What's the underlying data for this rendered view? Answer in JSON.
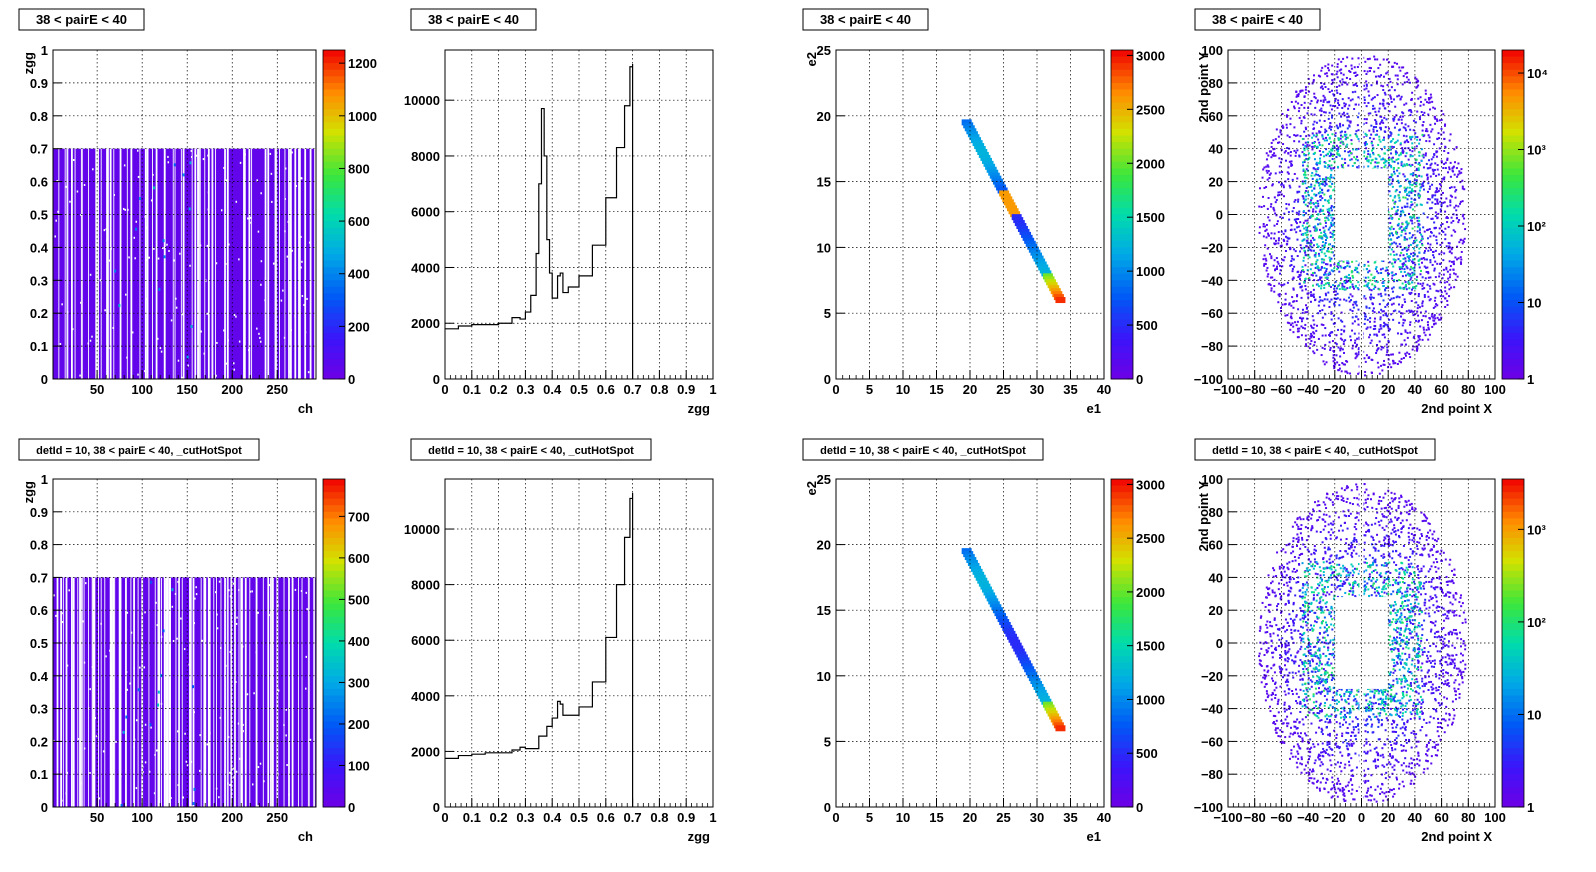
{
  "chart_data": [
    {
      "type": "heatmap",
      "title": "38 < pairE < 40",
      "xlabel": "ch",
      "ylabel": "zgg",
      "xlim": [
        1,
        293
      ],
      "ylim": [
        0,
        1
      ],
      "xticks": [
        50,
        100,
        150,
        200,
        250
      ],
      "xtick_labels": [
        "50",
        "100",
        "150",
        "200",
        "250"
      ],
      "yticks": [
        0,
        0.1,
        0.2,
        0.3,
        0.4,
        0.5,
        0.6,
        0.7,
        0.8,
        0.9,
        1
      ],
      "ytick_labels": [
        "0",
        "0.1",
        "0.2",
        "0.3",
        "0.4",
        "0.5",
        "0.6",
        "0.7",
        "0.8",
        "0.9",
        "1"
      ],
      "zlim": [
        0,
        1250
      ],
      "zticks": [
        0,
        200,
        400,
        600,
        800,
        1000,
        1200
      ],
      "ztick_labels": [
        "0",
        "200",
        "400",
        "600",
        "800",
        "1000",
        "1200"
      ],
      "fill": {
        "x_range": [
          1,
          293
        ],
        "y_range": [
          0,
          0.7
        ]
      }
    },
    {
      "type": "line",
      "title": "38 < pairE < 40",
      "xlabel": "zgg",
      "ylabel": "",
      "xlim": [
        0,
        1
      ],
      "ylim": [
        0,
        11800
      ],
      "xticks": [
        0,
        0.1,
        0.2,
        0.3,
        0.4,
        0.5,
        0.6,
        0.7,
        0.8,
        0.9,
        1
      ],
      "xtick_labels": [
        "0",
        "0.1",
        "0.2",
        "0.3",
        "0.4",
        "0.5",
        "0.6",
        "0.7",
        "0.8",
        "0.9",
        "1"
      ],
      "yticks": [
        0,
        2000,
        4000,
        6000,
        8000,
        10000
      ],
      "ytick_labels": [
        "0",
        "2000",
        "4000",
        "6000",
        "8000",
        "10000"
      ],
      "x": [
        0,
        0.05,
        0.1,
        0.15,
        0.2,
        0.25,
        0.28,
        0.3,
        0.32,
        0.34,
        0.35,
        0.36,
        0.37,
        0.38,
        0.39,
        0.4,
        0.42,
        0.43,
        0.44,
        0.46,
        0.5,
        0.55,
        0.6,
        0.64,
        0.67,
        0.69,
        0.7
      ],
      "y": [
        1800,
        1900,
        1950,
        1950,
        2000,
        2200,
        2150,
        2400,
        3000,
        4500,
        7000,
        9700,
        8000,
        5000,
        3800,
        2900,
        3700,
        3800,
        3100,
        3300,
        3700,
        4800,
        6500,
        8300,
        9800,
        11200,
        11300
      ]
    },
    {
      "type": "heatmap",
      "title": "38 < pairE < 40",
      "xlabel": "e1",
      "ylabel": "e2",
      "xlim": [
        0,
        40
      ],
      "ylim": [
        0,
        25
      ],
      "xticks": [
        0,
        5,
        10,
        15,
        20,
        25,
        30,
        35,
        40
      ],
      "xtick_labels": [
        "0",
        "5",
        "10",
        "15",
        "20",
        "25",
        "30",
        "35",
        "40"
      ],
      "yticks": [
        0,
        5,
        10,
        15,
        20,
        25
      ],
      "ytick_labels": [
        "0",
        "5",
        "10",
        "15",
        "20",
        "25"
      ],
      "zlim": [
        0,
        3050
      ],
      "zticks": [
        0,
        500,
        1000,
        1500,
        2000,
        2500,
        3000
      ],
      "ztick_labels": [
        "0",
        "500",
        "1000",
        "1500",
        "2000",
        "2500",
        "3000"
      ],
      "band": {
        "from": [
          19.5,
          19.5
        ],
        "to": [
          33.5,
          6.0
        ],
        "hot_at": [
          26,
          12.5
        ]
      }
    },
    {
      "type": "heatmap",
      "title": "38 < pairE < 40",
      "xlabel": "2nd point X",
      "ylabel": "2nd point Y",
      "xlim": [
        -100,
        100
      ],
      "ylim": [
        -100,
        100
      ],
      "zscale": "log",
      "xticks": [
        -100,
        -80,
        -60,
        -40,
        -20,
        0,
        20,
        40,
        60,
        80,
        100
      ],
      "xtick_labels": [
        "−100",
        "−80",
        "−60",
        "−40",
        "−20",
        "0",
        "20",
        "40",
        "60",
        "80",
        "100"
      ],
      "yticks": [
        -100,
        -80,
        -60,
        -40,
        -20,
        0,
        20,
        40,
        60,
        80,
        100
      ],
      "ytick_labels": [
        "−100",
        "−80",
        "−60",
        "−40",
        "−20",
        "0",
        "20",
        "40",
        "60",
        "80",
        "100"
      ],
      "zlim": [
        1,
        20000
      ],
      "zticks": [
        1,
        10,
        100,
        1000,
        10000
      ],
      "ztick_labels": [
        "1",
        "10",
        "10²",
        "10³",
        "10⁴"
      ]
    },
    {
      "type": "heatmap",
      "title": "detId = 10, 38 < pairE < 40, _cutHotSpot",
      "xlabel": "ch",
      "ylabel": "zgg",
      "xlim": [
        1,
        293
      ],
      "ylim": [
        0,
        1
      ],
      "xticks": [
        50,
        100,
        150,
        200,
        250
      ],
      "xtick_labels": [
        "50",
        "100",
        "150",
        "200",
        "250"
      ],
      "yticks": [
        0,
        0.1,
        0.2,
        0.3,
        0.4,
        0.5,
        0.6,
        0.7,
        0.8,
        0.9,
        1
      ],
      "ytick_labels": [
        "0",
        "0.1",
        "0.2",
        "0.3",
        "0.4",
        "0.5",
        "0.6",
        "0.7",
        "0.8",
        "0.9",
        "1"
      ],
      "zlim": [
        0,
        790
      ],
      "zticks": [
        0,
        100,
        200,
        300,
        400,
        500,
        600,
        700
      ],
      "ztick_labels": [
        "0",
        "100",
        "200",
        "300",
        "400",
        "500",
        "600",
        "700"
      ],
      "fill": {
        "x_range": [
          1,
          293
        ],
        "y_range": [
          0,
          0.7
        ]
      }
    },
    {
      "type": "line",
      "title": "detId = 10, 38 < pairE < 40, _cutHotSpot",
      "xlabel": "zgg",
      "ylabel": "",
      "xlim": [
        0,
        1
      ],
      "ylim": [
        0,
        11800
      ],
      "xticks": [
        0,
        0.1,
        0.2,
        0.3,
        0.4,
        0.5,
        0.6,
        0.7,
        0.8,
        0.9,
        1
      ],
      "xtick_labels": [
        "0",
        "0.1",
        "0.2",
        "0.3",
        "0.4",
        "0.5",
        "0.6",
        "0.7",
        "0.8",
        "0.9",
        "1"
      ],
      "yticks": [
        0,
        2000,
        4000,
        6000,
        8000,
        10000
      ],
      "ytick_labels": [
        "0",
        "2000",
        "4000",
        "6000",
        "8000",
        "10000"
      ],
      "x": [
        0,
        0.05,
        0.1,
        0.15,
        0.2,
        0.25,
        0.28,
        0.3,
        0.35,
        0.38,
        0.4,
        0.42,
        0.43,
        0.44,
        0.46,
        0.5,
        0.55,
        0.6,
        0.64,
        0.67,
        0.69,
        0.7
      ],
      "y": [
        1750,
        1850,
        1900,
        1950,
        1950,
        2050,
        2150,
        2100,
        2550,
        2900,
        3200,
        3800,
        3700,
        3300,
        3300,
        3600,
        4500,
        6100,
        8000,
        9700,
        11100,
        11300
      ]
    },
    {
      "type": "heatmap",
      "title": "detId = 10, 38 < pairE < 40, _cutHotSpot",
      "xlabel": "e1",
      "ylabel": "e2",
      "xlim": [
        0,
        40
      ],
      "ylim": [
        0,
        25
      ],
      "xticks": [
        0,
        5,
        10,
        15,
        20,
        25,
        30,
        35,
        40
      ],
      "xtick_labels": [
        "0",
        "5",
        "10",
        "15",
        "20",
        "25",
        "30",
        "35",
        "40"
      ],
      "yticks": [
        0,
        5,
        10,
        15,
        20,
        25
      ],
      "ytick_labels": [
        "0",
        "5",
        "10",
        "15",
        "20",
        "25"
      ],
      "zlim": [
        0,
        3050
      ],
      "zticks": [
        0,
        500,
        1000,
        1500,
        2000,
        2500,
        3000
      ],
      "ztick_labels": [
        "0",
        "500",
        "1000",
        "1500",
        "2000",
        "2500",
        "3000"
      ],
      "band": {
        "from": [
          19.5,
          19.5
        ],
        "to": [
          33.5,
          6.0
        ],
        "hot_at": null
      }
    },
    {
      "type": "heatmap",
      "title": "detId = 10, 38 < pairE < 40, _cutHotSpot",
      "xlabel": "2nd point X",
      "ylabel": "2nd point Y",
      "xlim": [
        -100,
        100
      ],
      "ylim": [
        -100,
        100
      ],
      "zscale": "log",
      "xticks": [
        -100,
        -80,
        -60,
        -40,
        -20,
        0,
        20,
        40,
        60,
        80,
        100
      ],
      "xtick_labels": [
        "−100",
        "−80",
        "−60",
        "−40",
        "−20",
        "0",
        "20",
        "40",
        "60",
        "80",
        "100"
      ],
      "yticks": [
        -100,
        -80,
        -60,
        -40,
        -20,
        0,
        20,
        40,
        60,
        80,
        100
      ],
      "ytick_labels": [
        "−100",
        "−80",
        "−60",
        "−40",
        "−20",
        "0",
        "20",
        "40",
        "60",
        "80",
        "100"
      ],
      "zlim": [
        1,
        3500
      ],
      "zticks": [
        1,
        10,
        100,
        1000
      ],
      "ztick_labels": [
        "1",
        "10",
        "10²",
        "10³"
      ]
    }
  ]
}
